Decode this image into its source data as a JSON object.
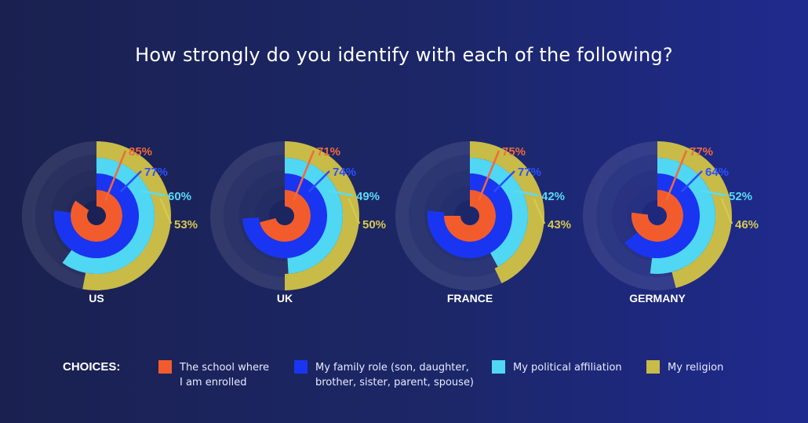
{
  "title": "How strongly do you identify with each of the following?",
  "legend": {
    "title": "CHOICES:",
    "items": [
      {
        "line1": "The school where",
        "line2": "I am enrolled",
        "color": "#f25c2c"
      },
      {
        "line1": "My family role (son, daughter,",
        "line2": "brother, sister, parent, spouse)",
        "color": "#1a35f2"
      },
      {
        "line1": "My political affiliation",
        "line2": "",
        "color": "#4fd7f4"
      },
      {
        "line1": "My religion",
        "line2": "",
        "color": "#c8bb48"
      }
    ]
  },
  "label_colors": [
    "#f06a3c",
    "#2950ff",
    "#58dcf5",
    "#d6c94f"
  ],
  "chart_data": {
    "type": "radial bar",
    "title": "How strongly do you identify with each of the following?",
    "categories": [
      "US",
      "UK",
      "FRANCE",
      "GERMANY"
    ],
    "unit": "%",
    "series": [
      {
        "name": "The school where I am enrolled",
        "values": [
          85,
          71,
          75,
          77
        ]
      },
      {
        "name": "My family role (son, daughter, brother, sister, parent, spouse)",
        "values": [
          77,
          74,
          77,
          64
        ]
      },
      {
        "name": "My political affiliation",
        "values": [
          60,
          49,
          42,
          52
        ]
      },
      {
        "name": "My religion",
        "values": [
          53,
          50,
          43,
          46
        ]
      }
    ],
    "data_labels": [
      [
        "85%",
        "77%",
        "60%",
        "53%"
      ],
      [
        "71%",
        "74%",
        "49%",
        "50%"
      ],
      [
        "75%",
        "77%",
        "42%",
        "43%"
      ],
      [
        "77%",
        "64%",
        "52%",
        "46%"
      ]
    ]
  }
}
